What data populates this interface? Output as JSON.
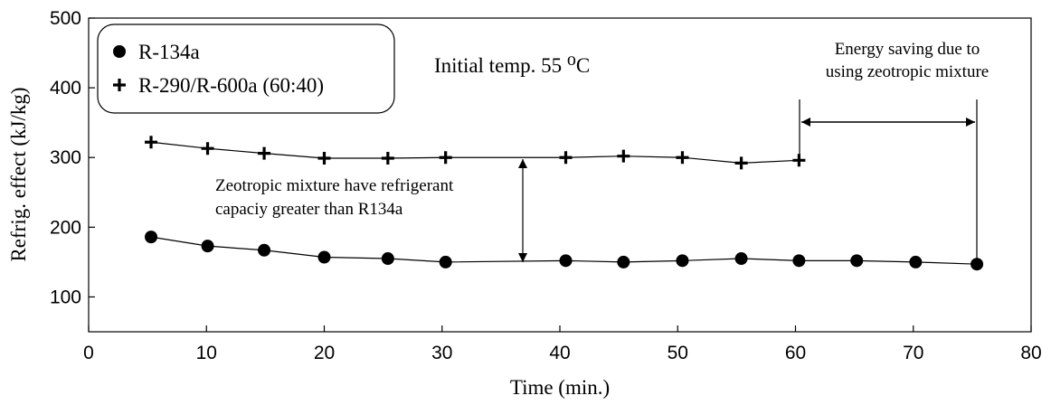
{
  "chart_data": {
    "type": "line",
    "x_label": "Time (min.)",
    "y_label": "Refrig. effect (kJ/kg)",
    "xlim": [
      0,
      80
    ],
    "xticks": [
      0,
      10,
      20,
      30,
      40,
      50,
      60,
      70,
      80
    ],
    "ylim": [
      50,
      500
    ],
    "yticks": [
      100,
      200,
      300,
      400,
      500
    ],
    "grid": false,
    "series": [
      {
        "name": "R-134a",
        "color": "#000000",
        "marker": "circle",
        "x": [
          5.3,
          10.1,
          14.9,
          20,
          25.4,
          30.3,
          40.5,
          45.4,
          50.4,
          55.4,
          60.3,
          65.2,
          70.2,
          75.4
        ],
        "values": [
          186,
          173,
          167,
          157,
          155,
          150,
          152,
          150,
          152,
          155,
          152,
          152,
          150,
          147
        ]
      },
      {
        "name": "R-290/R-600a (60:40)",
        "color": "#000000",
        "marker": "plus",
        "x": [
          5.3,
          10.1,
          14.9,
          20,
          25.4,
          30.3,
          40.5,
          45.4,
          50.4,
          55.4,
          60.3
        ],
        "values": [
          322,
          313,
          306,
          299,
          299,
          300,
          300,
          302,
          300,
          292,
          296
        ]
      }
    ],
    "annotations": {
      "initial_temp": "Initial temp.  55",
      "initial_temp_sup": "o",
      "initial_temp_unit": "C",
      "energy_line1": "Energy saving due to",
      "energy_line2": "using zeotropic mixture",
      "zeo_line1": "Zeotropic mixture have refrigerant",
      "zeo_line2": "capaciy greater than R134a"
    }
  }
}
